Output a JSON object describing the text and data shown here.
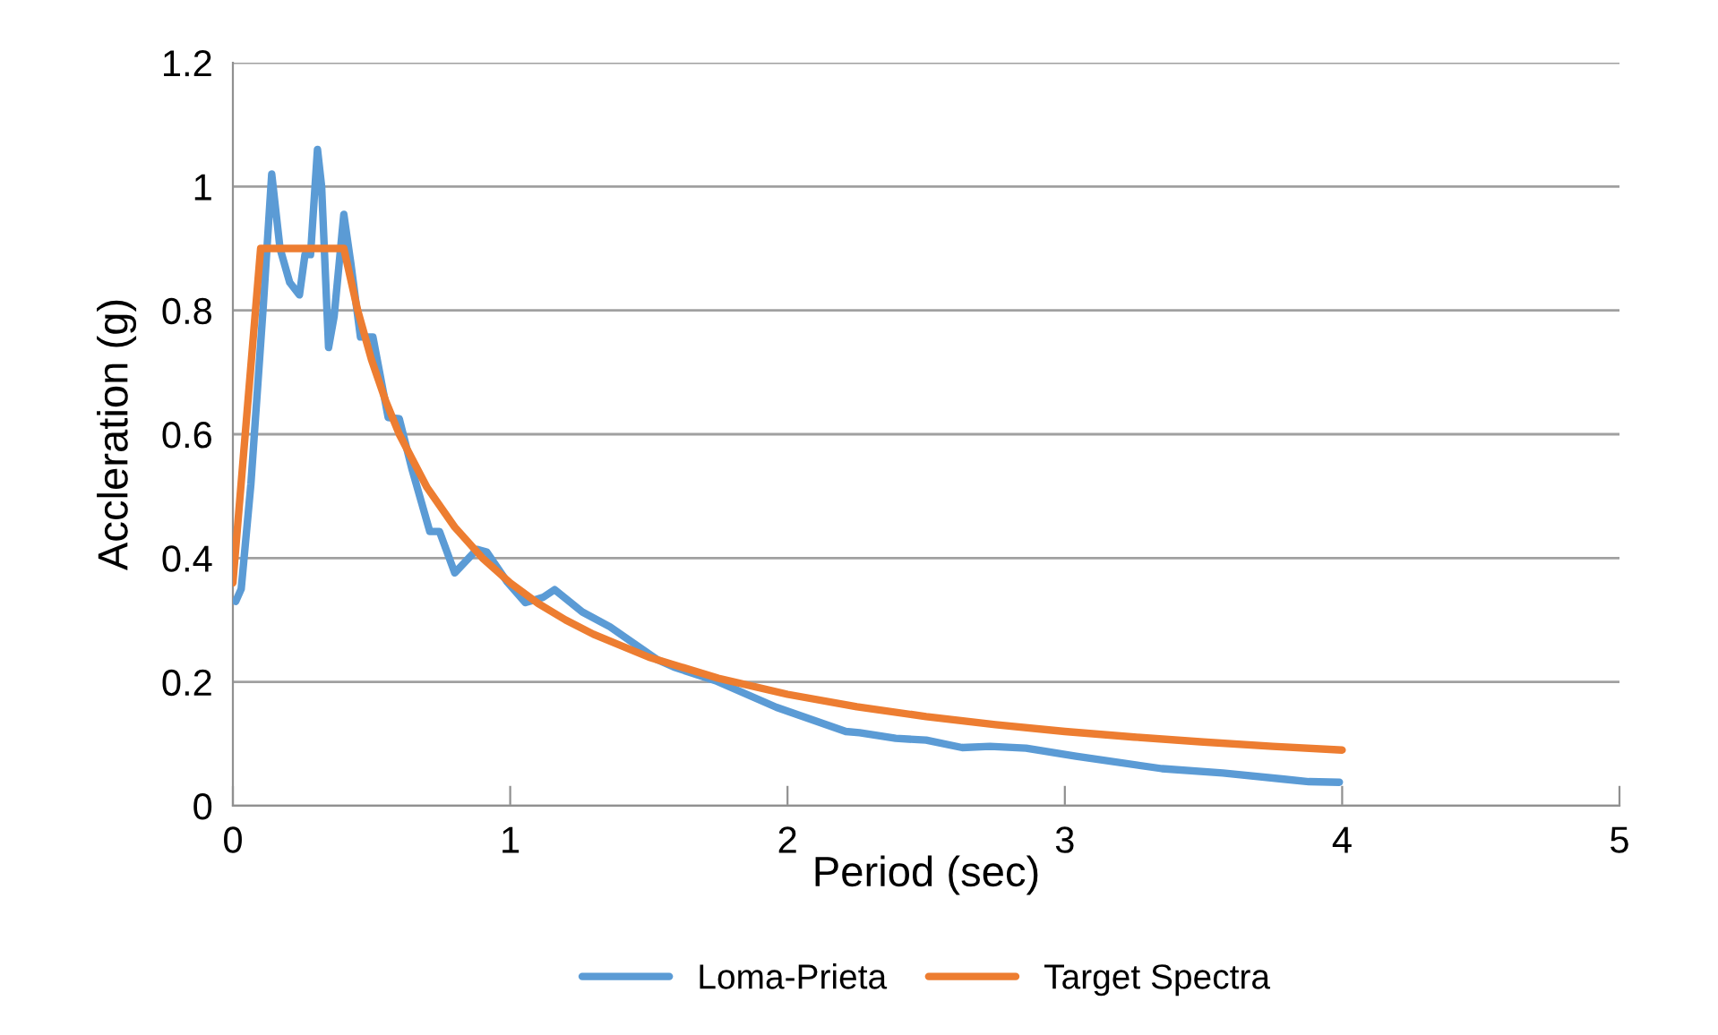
{
  "chart_data": {
    "type": "line",
    "xlabel": "Period (sec)",
    "ylabel": "Accleration (g)",
    "xlim": [
      0,
      5
    ],
    "xticks": [
      0,
      1,
      2,
      3,
      4,
      5
    ],
    "ylim": [
      0,
      1.2
    ],
    "yticks": [
      0,
      0.2,
      0.4,
      0.6,
      0.8,
      1,
      1.2
    ],
    "grid": "y",
    "legend": "bottom",
    "marker": "none",
    "line_style": "solid",
    "series": [
      {
        "name": "Loma-Prieta",
        "color": "#5b9bd5",
        "x": [
          0.01,
          0.03,
          0.065,
          0.11,
          0.14,
          0.17,
          0.205,
          0.24,
          0.26,
          0.28,
          0.305,
          0.32,
          0.345,
          0.365,
          0.4,
          0.425,
          0.46,
          0.505,
          0.56,
          0.6,
          0.645,
          0.71,
          0.745,
          0.8,
          0.88,
          0.915,
          0.99,
          1.055,
          1.12,
          1.16,
          1.26,
          1.36,
          1.53,
          1.59,
          1.74,
          1.96,
          2.21,
          2.26,
          2.39,
          2.5,
          2.63,
          2.73,
          2.86,
          3.04,
          3.35,
          3.57,
          3.79,
          3.88,
          3.99
        ],
        "values": [
          0.33,
          0.35,
          0.52,
          0.81,
          1.02,
          0.9,
          0.845,
          0.825,
          0.89,
          0.89,
          1.06,
          1.0,
          0.74,
          0.79,
          0.955,
          0.877,
          0.757,
          0.757,
          0.627,
          0.625,
          0.545,
          0.443,
          0.443,
          0.376,
          0.414,
          0.41,
          0.361,
          0.328,
          0.337,
          0.349,
          0.313,
          0.289,
          0.236,
          0.224,
          0.202,
          0.159,
          0.12,
          0.118,
          0.109,
          0.106,
          0.094,
          0.096,
          0.093,
          0.08,
          0.06,
          0.053,
          0.043,
          0.039,
          0.038
        ]
      },
      {
        "name": "Target Spectra",
        "color": "#ed7d31",
        "x": [
          0,
          0.1,
          0.4,
          0.45,
          0.5,
          0.55,
          0.6,
          0.7,
          0.8,
          0.9,
          1.0,
          1.1,
          1.2,
          1.3,
          1.5,
          1.75,
          2.0,
          2.25,
          2.5,
          2.75,
          3.0,
          3.25,
          3.5,
          3.75,
          4.0
        ],
        "values": [
          0.36,
          0.9,
          0.9,
          0.8,
          0.72,
          0.655,
          0.6,
          0.514,
          0.45,
          0.4,
          0.36,
          0.327,
          0.3,
          0.277,
          0.24,
          0.206,
          0.18,
          0.16,
          0.144,
          0.131,
          0.12,
          0.111,
          0.103,
          0.096,
          0.09
        ]
      }
    ]
  }
}
